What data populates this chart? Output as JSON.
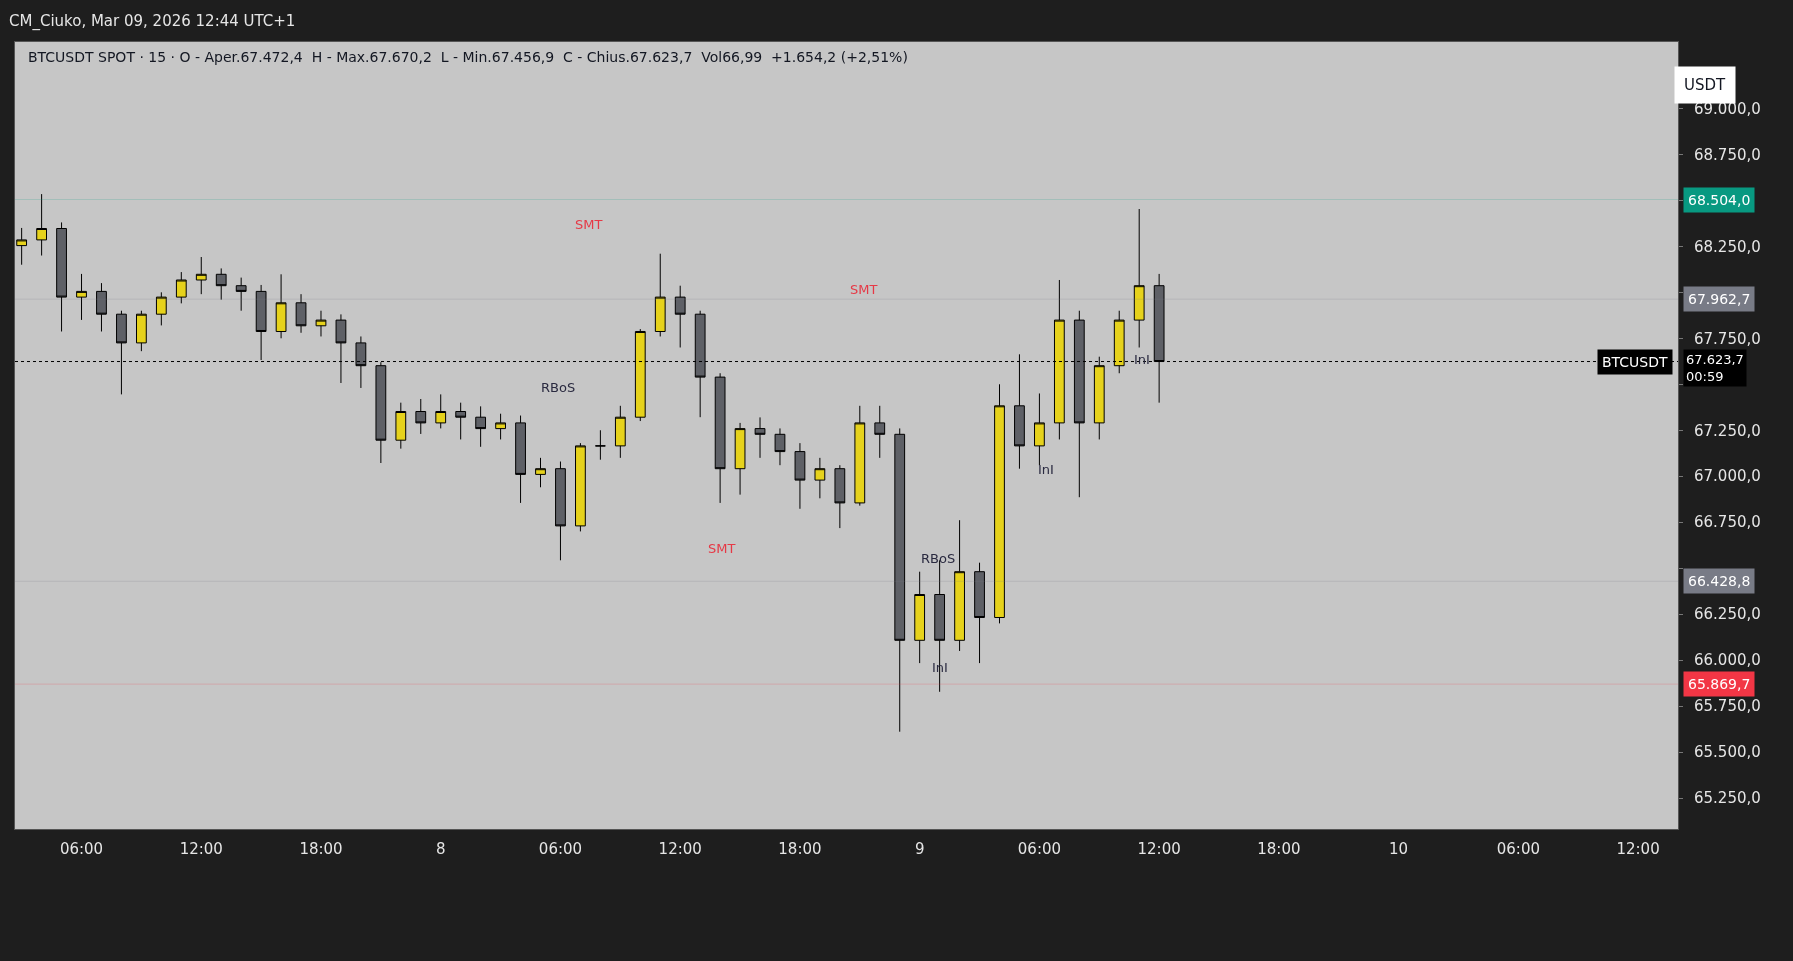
{
  "chart_data": {
    "type": "candlestick",
    "title": "BTCUSDT SPOT · 15 · O - Aper.67.472,4  H - Max.67.670,2  L - Min.67.456,9  C - Chius.67.623,7  Vol66,99  +1.654,2 (+2,51%)",
    "x": [
      "2026-03-07T03:00",
      "2026-03-07T04:00",
      "2026-03-07T05:00",
      "2026-03-07T06:00",
      "2026-03-07T07:00",
      "2026-03-07T08:00",
      "2026-03-07T09:00",
      "2026-03-07T10:00",
      "2026-03-07T11:00",
      "2026-03-07T12:00",
      "2026-03-07T13:00",
      "2026-03-07T14:00",
      "2026-03-07T15:00",
      "2026-03-07T16:00",
      "2026-03-07T17:00",
      "2026-03-07T18:00",
      "2026-03-07T19:00",
      "2026-03-07T20:00",
      "2026-03-07T21:00",
      "2026-03-07T22:00",
      "2026-03-07T23:00",
      "2026-03-08T00:00",
      "2026-03-08T01:00",
      "2026-03-08T02:00",
      "2026-03-08T03:00",
      "2026-03-08T04:00",
      "2026-03-08T05:00",
      "2026-03-08T06:00",
      "2026-03-08T07:00",
      "2026-03-08T08:00",
      "2026-03-08T09:00",
      "2026-03-08T10:00",
      "2026-03-08T11:00",
      "2026-03-08T12:00",
      "2026-03-08T13:00",
      "2026-03-08T14:00",
      "2026-03-08T15:00",
      "2026-03-08T16:00",
      "2026-03-08T17:00",
      "2026-03-08T18:00",
      "2026-03-08T19:00",
      "2026-03-08T20:00",
      "2026-03-08T21:00",
      "2026-03-08T22:00",
      "2026-03-08T23:00",
      "2026-03-09T00:00",
      "2026-03-09T01:00",
      "2026-03-09T02:00",
      "2026-03-09T03:00",
      "2026-03-09T04:00",
      "2026-03-09T05:00",
      "2026-03-09T06:00",
      "2026-03-09T07:00",
      "2026-03-09T08:00",
      "2026-03-09T09:00",
      "2026-03-09T10:00",
      "2026-03-09T11:00",
      "2026-03-09T12:00"
    ],
    "ohlc": [
      [
        68254,
        68350,
        68150,
        68285
      ],
      [
        68285,
        68534,
        68200,
        68347
      ],
      [
        68347,
        68380,
        67787,
        67974
      ],
      [
        67974,
        68100,
        67850,
        68005
      ],
      [
        68005,
        68050,
        67787,
        67881
      ],
      [
        67881,
        67900,
        67445,
        67725
      ],
      [
        67725,
        67900,
        67680,
        67881
      ],
      [
        67881,
        68000,
        67820,
        67974
      ],
      [
        67974,
        68110,
        67940,
        68067
      ],
      [
        68067,
        68192,
        67990,
        68098
      ],
      [
        68098,
        68130,
        67960,
        68036
      ],
      [
        68036,
        68080,
        67900,
        68005
      ],
      [
        68005,
        68040,
        67632,
        67787
      ],
      [
        67787,
        68098,
        67750,
        67943
      ],
      [
        67943,
        67990,
        67780,
        67818
      ],
      [
        67818,
        67900,
        67760,
        67849
      ],
      [
        67849,
        67880,
        67507,
        67725
      ],
      [
        67725,
        67760,
        67480,
        67601
      ],
      [
        67601,
        67620,
        67072,
        67196
      ],
      [
        67196,
        67400,
        67150,
        67352
      ],
      [
        67352,
        67420,
        67230,
        67290
      ],
      [
        67290,
        67445,
        67260,
        67352
      ],
      [
        67352,
        67400,
        67200,
        67321
      ],
      [
        67321,
        67380,
        67160,
        67259
      ],
      [
        67259,
        67340,
        67200,
        67290
      ],
      [
        67290,
        67330,
        66855,
        67010
      ],
      [
        67010,
        67100,
        66940,
        67041
      ],
      [
        67041,
        67080,
        66543,
        66730
      ],
      [
        66730,
        67180,
        66700,
        67165
      ],
      [
        67165,
        67250,
        67090,
        67165
      ],
      [
        67165,
        67383,
        67100,
        67321
      ],
      [
        67321,
        67800,
        67300,
        67787
      ],
      [
        67787,
        68210,
        67760,
        67974
      ],
      [
        67974,
        68036,
        67700,
        67881
      ],
      [
        67881,
        67900,
        67321,
        67539
      ],
      [
        67539,
        67560,
        66855,
        67041
      ],
      [
        67041,
        67290,
        66900,
        67259
      ],
      [
        67259,
        67320,
        67100,
        67228
      ],
      [
        67228,
        67260,
        67060,
        67134
      ],
      [
        67134,
        67180,
        66823,
        66979
      ],
      [
        66979,
        67100,
        66880,
        67041
      ],
      [
        67041,
        67060,
        66718,
        66855
      ],
      [
        66855,
        67383,
        66840,
        67290
      ],
      [
        67290,
        67383,
        67100,
        67228
      ],
      [
        67228,
        67260,
        65611,
        66108
      ],
      [
        66108,
        66481,
        65984,
        66357
      ],
      [
        66357,
        66543,
        65828,
        66108
      ],
      [
        66108,
        66761,
        66050,
        66481
      ],
      [
        66481,
        66530,
        65984,
        66232
      ],
      [
        66232,
        67500,
        66200,
        67383
      ],
      [
        67383,
        67663,
        67041,
        67165
      ],
      [
        67165,
        67450,
        67060,
        67290
      ],
      [
        67290,
        68067,
        67200,
        67849
      ],
      [
        67849,
        67900,
        66886,
        67290
      ],
      [
        67290,
        67650,
        67200,
        67601
      ],
      [
        67601,
        67900,
        67560,
        67849
      ],
      [
        67849,
        68453,
        67700,
        68036
      ],
      [
        68036,
        68100,
        67400,
        67623.7
      ]
    ],
    "xlim": [
      "2026-03-07T02:40",
      "2026-03-10T14:00"
    ],
    "xticks": [
      {
        "value": "2026-03-07T06:00",
        "label": "06:00"
      },
      {
        "value": "2026-03-07T12:00",
        "label": "12:00"
      },
      {
        "value": "2026-03-07T18:00",
        "label": "18:00"
      },
      {
        "value": "2026-03-08T00:00",
        "label": "8"
      },
      {
        "value": "2026-03-08T06:00",
        "label": "06:00"
      },
      {
        "value": "2026-03-08T12:00",
        "label": "12:00"
      },
      {
        "value": "2026-03-08T18:00",
        "label": "18:00"
      },
      {
        "value": "2026-03-09T00:00",
        "label": "9"
      },
      {
        "value": "2026-03-09T06:00",
        "label": "06:00"
      },
      {
        "value": "2026-03-09T12:00",
        "label": "12:00"
      },
      {
        "value": "2026-03-09T18:00",
        "label": "18:00"
      },
      {
        "value": "2026-03-10T00:00",
        "label": "10"
      },
      {
        "value": "2026-03-10T06:00",
        "label": "06:00"
      },
      {
        "value": "2026-03-10T12:00",
        "label": "12:00"
      }
    ],
    "ylim": [
      65082,
      69361
    ],
    "yticks": [
      {
        "value": 65250,
        "label": "65.250,0"
      },
      {
        "value": 65500,
        "label": "65.500,0"
      },
      {
        "value": 65750,
        "label": "65.750,0"
      },
      {
        "value": 66000,
        "label": "66.000,0"
      },
      {
        "value": 66250,
        "label": "66.250,0"
      },
      {
        "value": 66500,
        "label": null
      },
      {
        "value": 66750,
        "label": "66.750,0"
      },
      {
        "value": 67000,
        "label": "67.000,0"
      },
      {
        "value": 67250,
        "label": "67.250,0"
      },
      {
        "value": 67500,
        "label": null
      },
      {
        "value": 67750,
        "label": "67.750,0"
      },
      {
        "value": 68000,
        "label": null
      },
      {
        "value": 68250,
        "label": "68.250,0"
      },
      {
        "value": 68500,
        "label": null
      },
      {
        "value": 68750,
        "label": "68.750,0"
      },
      {
        "value": 69000,
        "label": "69.000,0"
      }
    ],
    "ref_lines": [
      {
        "axis": "y",
        "value": 67623.7,
        "label": "BTCUSDT",
        "color": "#000000",
        "line_style": "dotted"
      },
      {
        "axis": "y",
        "value": 68504,
        "label": "68.504,0",
        "color": "#089981"
      },
      {
        "axis": "y",
        "value": 67962.7,
        "label": "67.962,7",
        "color": "#787b86"
      },
      {
        "axis": "y",
        "value": 66428.8,
        "label": "66.428,8",
        "color": "#787b86"
      },
      {
        "axis": "y",
        "value": 65869.7,
        "label": "65.869,7",
        "color": "#f23645"
      }
    ],
    "annotations": [
      "CM_Ciuko, Mar 09, 2026 12:44 UTC+1",
      "USDT",
      "67.623,7",
      "00:59",
      "SMT",
      "SMT",
      "SMT",
      "RBoS",
      "RBoS",
      "InI",
      "InI",
      "InI"
    ],
    "grid": false
  }
}
